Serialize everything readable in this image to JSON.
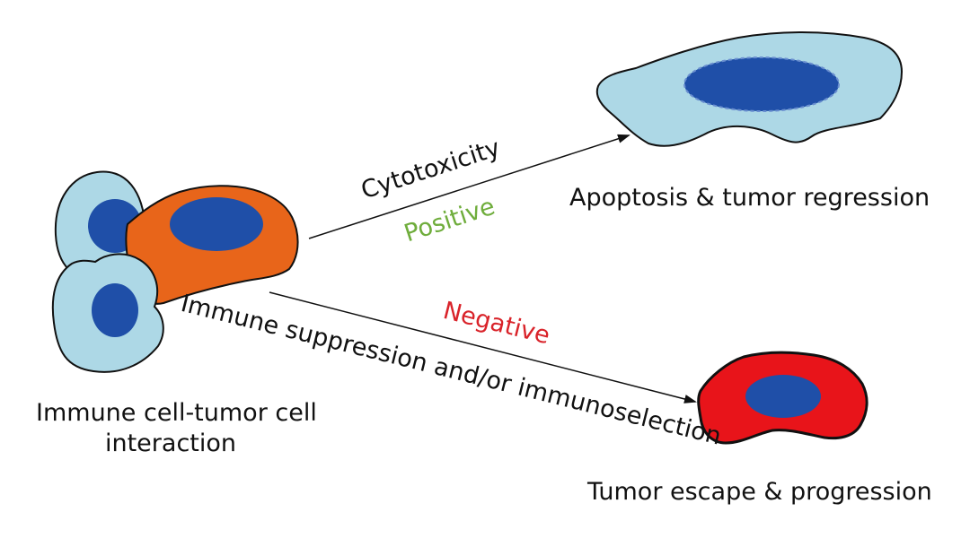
{
  "labels": {
    "interaction_line1": "Immune cell-tumor cell",
    "interaction_line2": "interaction",
    "cytotoxicity": "Cytotoxicity",
    "positive": "Positive",
    "negative": "Negative",
    "suppression": "Immune suppression and/or immunoselection",
    "apoptosis": "Apoptosis & tumor regression",
    "escape": "Tumor escape & progression"
  },
  "colors": {
    "immune_cell": "#add8e6",
    "nucleus": "#1f4fa8",
    "interacting_tumor_cell": "#e8651a",
    "apoptotic_cell": "#add8e6",
    "escaped_tumor_cell": "#e8141a",
    "positive": "#6fad3c",
    "negative": "#d9232a",
    "text": "#111111",
    "outline": "#111111"
  }
}
